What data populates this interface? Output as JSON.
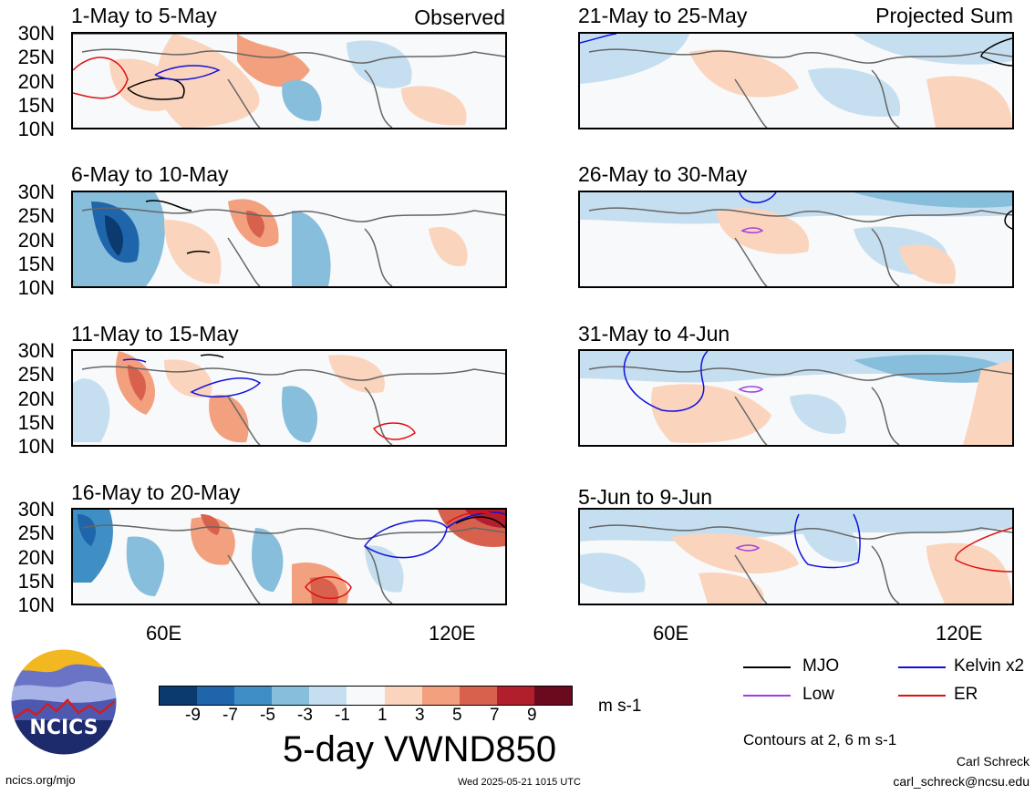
{
  "header": {
    "observed_tag": "Observed",
    "projected_tag": "Projected Sum"
  },
  "panels": [
    {
      "title": "1-May to 5-May"
    },
    {
      "title": "6-May to 10-May"
    },
    {
      "title": "11-May to 15-May"
    },
    {
      "title": "16-May to 20-May"
    },
    {
      "title": "21-May to 25-May"
    },
    {
      "title": "26-May to 30-May"
    },
    {
      "title": "31-May to 4-Jun"
    },
    {
      "title": "5-Jun to 9-Jun"
    }
  ],
  "lat_ticks": [
    "30N",
    "25N",
    "20N",
    "15N",
    "10N"
  ],
  "lon_ticks": [
    "60E",
    "120E"
  ],
  "colorbar": {
    "labels": [
      "-9",
      "-7",
      "-5",
      "-3",
      "-1",
      "1",
      "3",
      "5",
      "7",
      "9"
    ],
    "colors": [
      "#0b3a6e",
      "#1f65ab",
      "#3f8fc5",
      "#86bedc",
      "#c6dff0",
      "#f7f9fa",
      "#fbd4bd",
      "#f3a07e",
      "#d8614e",
      "#b11f2d",
      "#6b0a1f"
    ],
    "units": "m s-1"
  },
  "title": "5-day VWND850",
  "legend": {
    "items": [
      {
        "label": "MJO",
        "color": "#000000"
      },
      {
        "label": "Kelvin x2",
        "color": "#1010dd"
      },
      {
        "label": "Low",
        "color": "#a23ee0"
      },
      {
        "label": "ER",
        "color": "#e01010"
      }
    ],
    "contour_note": "Contours at 2, 6 m s-1"
  },
  "logo": {
    "text": "NCICS"
  },
  "footer": {
    "left": "ncics.org/mjo",
    "center": "Wed 2025-05-21 1015 UTC",
    "author": "Carl Schreck",
    "email": "carl_schreck@ncsu.edu"
  }
}
